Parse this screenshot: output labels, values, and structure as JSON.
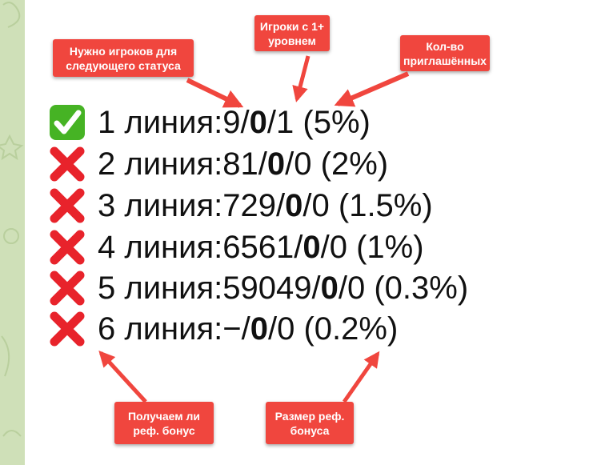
{
  "rows": [
    {
      "status": "check",
      "label": "1 линия: ",
      "needed": "9",
      "active": "0",
      "invited": "1",
      "bonus": "(5%)"
    },
    {
      "status": "cross",
      "label": "2 линия: ",
      "needed": "81",
      "active": "0",
      "invited": "0",
      "bonus": "(2%)"
    },
    {
      "status": "cross",
      "label": "3 линия: ",
      "needed": "729",
      "active": "0",
      "invited": "0",
      "bonus": "(1.5%)"
    },
    {
      "status": "cross",
      "label": "4 линия: ",
      "needed": "6561",
      "active": "0",
      "invited": "0",
      "bonus": "(1%)"
    },
    {
      "status": "cross",
      "label": "5 линия: ",
      "needed": "59049",
      "active": "0",
      "invited": "0",
      "bonus": "(0.3%)"
    },
    {
      "status": "cross",
      "label": "6 линия: ",
      "needed": "−",
      "active": "0",
      "invited": "0",
      "bonus": "(0.2%)"
    }
  ],
  "separator": "/",
  "callouts": {
    "needed_players": "Нужно игроков для следующего статуса",
    "active_players": "Игроки с 1+ уровнем",
    "invited_count": "Кол-во приглашённых",
    "bonus_received": "Получаем ли реф. бонус",
    "bonus_size": "Размер реф. бонуса"
  },
  "colors": {
    "callout": "#f0463e",
    "check": "#46b324",
    "cross": "#e8232b",
    "chat_background": "#cfe0b8"
  },
  "icons": {
    "check": "check-mark-emoji-icon",
    "cross": "cross-mark-emoji-icon"
  }
}
